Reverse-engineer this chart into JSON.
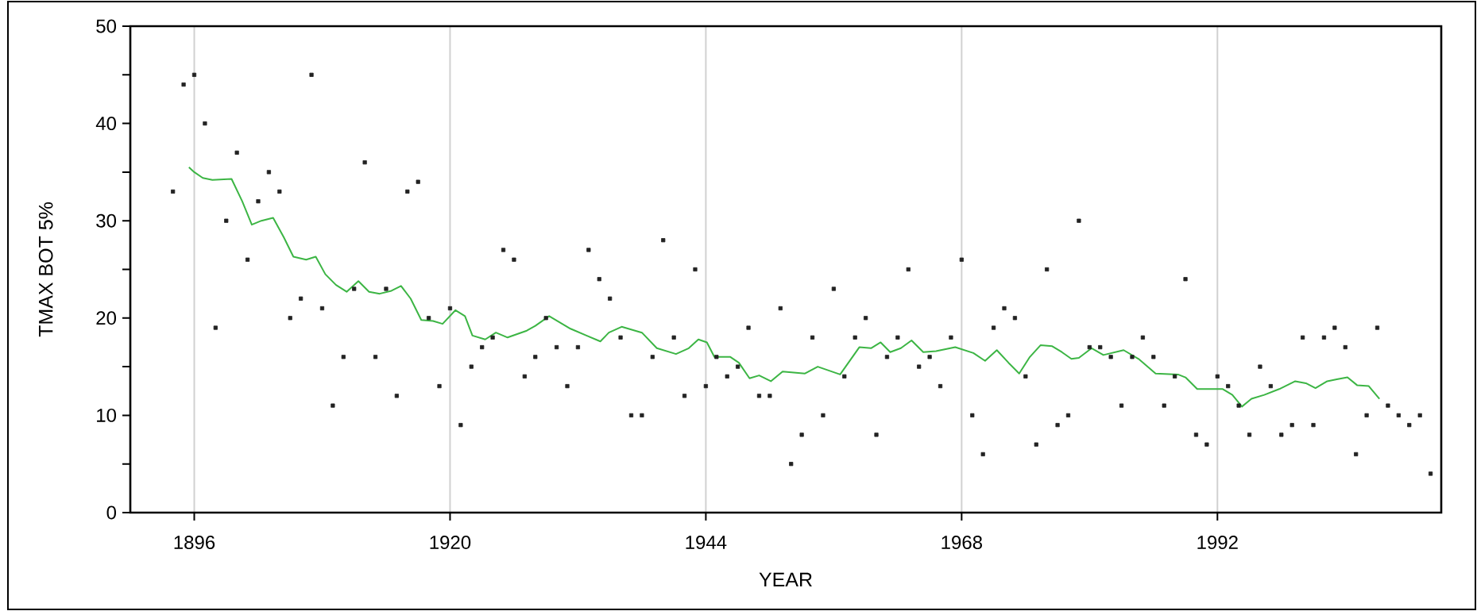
{
  "chart_data": {
    "type": "scatter",
    "xlabel": "YEAR",
    "ylabel": "TMAX BOT 5%",
    "xlim": [
      1890,
      2013
    ],
    "ylim": [
      0,
      50
    ],
    "xticks": [
      1896,
      1920,
      1944,
      1968,
      1992
    ],
    "yticks": [
      0,
      {
        "value": 5,
        "label": null
      },
      10,
      {
        "value": 15,
        "label": null
      },
      20,
      {
        "value": 25,
        "label": null
      },
      30,
      {
        "value": 35,
        "label": null
      },
      40,
      {
        "value": 45,
        "label": null
      },
      50
    ],
    "grid": "x",
    "marker": "square",
    "series": [
      {
        "color": "#222222",
        "x": [
          1894,
          1895,
          1896,
          1897,
          1898,
          1899,
          1900,
          1901,
          1902,
          1903,
          1904,
          1905,
          1906,
          1907,
          1908,
          1909,
          1910,
          1911,
          1912,
          1913,
          1914,
          1915,
          1916,
          1917,
          1918,
          1919,
          1920,
          1921,
          1922,
          1923,
          1924,
          1925,
          1926,
          1927,
          1928,
          1929,
          1930,
          1931,
          1932,
          1933,
          1934,
          1935,
          1936,
          1937,
          1938,
          1939,
          1940,
          1941,
          1942,
          1943,
          1944,
          1945,
          1946,
          1947,
          1948,
          1949,
          1950,
          1951,
          1952,
          1953,
          1954,
          1955,
          1956,
          1957,
          1958,
          1959,
          1960,
          1961,
          1962,
          1963,
          1964,
          1965,
          1966,
          1967,
          1968,
          1969,
          1970,
          1971,
          1972,
          1973,
          1974,
          1975,
          1976,
          1977,
          1978,
          1979,
          1980,
          1981,
          1982,
          1983,
          1984,
          1985,
          1986,
          1987,
          1988,
          1989,
          1990,
          1991,
          1992,
          1993,
          1994,
          1995,
          1996,
          1997,
          1998,
          1999,
          2000,
          2001,
          2002,
          2003,
          2004,
          2005,
          2006,
          2007,
          2008,
          2009,
          2010,
          2011,
          2012
        ],
        "values": [
          33,
          44,
          45,
          40,
          19,
          30,
          37,
          26,
          32,
          35,
          33,
          20,
          22,
          45,
          21,
          11,
          16,
          23,
          36,
          16,
          23,
          12,
          33,
          34,
          20,
          13,
          21,
          9,
          15,
          17,
          18,
          27,
          26,
          14,
          16,
          20,
          17,
          13,
          17,
          27,
          24,
          22,
          18,
          10,
          10,
          16,
          28,
          18,
          12,
          25,
          13,
          16,
          14,
          15,
          19,
          12,
          12,
          21,
          5,
          8,
          18,
          10,
          23,
          14,
          18,
          20,
          8,
          16,
          18,
          25,
          15,
          16,
          13,
          18,
          26,
          10,
          6,
          19,
          21,
          20,
          14,
          7,
          25,
          9,
          10,
          30,
          17,
          17,
          16,
          11,
          16,
          18,
          16,
          11,
          14,
          24,
          8,
          7,
          14,
          13,
          11,
          8,
          15,
          13,
          8,
          9,
          18,
          9,
          18,
          19,
          17,
          6,
          10,
          19,
          11,
          10,
          9,
          10,
          4
        ]
      },
      {
        "type": "line",
        "color": "#3cb544",
        "marker": "none",
        "x": [
          1895.5,
          1896,
          1896.8,
          1897.7,
          1899.5,
          1900.5,
          1901.4,
          1902.3,
          1903.4,
          1904.4,
          1905.3,
          1906.5,
          1907.4,
          1908.3,
          1909.3,
          1910.3,
          1911.4,
          1912.4,
          1913.4,
          1914.5,
          1915.4,
          1916.3,
          1917.3,
          1918.4,
          1919.3,
          1920.5,
          1921.4,
          1922.1,
          1923.3,
          1924.3,
          1925.4,
          1927.2,
          1928.0,
          1929.3,
          1931.3,
          1932.8,
          1934.1,
          1934.9,
          1936.1,
          1938.0,
          1939.4,
          1941.2,
          1942.4,
          1943.3,
          1944.1,
          1944.8,
          1946.3,
          1947.1,
          1948.1,
          1949.0,
          1950.1,
          1951.2,
          1953.3,
          1954.5,
          1956.6,
          1958.4,
          1959.5,
          1960.4,
          1961.3,
          1962.3,
          1963.3,
          1964.4,
          1965.6,
          1967.4,
          1969.1,
          1970.2,
          1971.3,
          1972.4,
          1973.4,
          1974.4,
          1975.4,
          1976.5,
          1977.4,
          1978.3,
          1979.0,
          1980.2,
          1981.3,
          1983.2,
          1984.6,
          1986.2,
          1988.3,
          1989.0,
          1990.1,
          1991.3,
          1992.5,
          1993.4,
          1994.3,
          1995.2,
          1996.4,
          1997.8,
          1999.3,
          2000.3,
          2001.2,
          2002.3,
          2003.2,
          2004.2,
          2005.1,
          2006.2,
          2007.2
        ],
        "values": [
          35.5,
          35.0,
          34.4,
          34.2,
          34.3,
          32.0,
          29.6,
          30.0,
          30.3,
          28.3,
          26.3,
          26.0,
          26.3,
          24.5,
          23.4,
          22.7,
          23.8,
          22.7,
          22.5,
          22.8,
          23.3,
          22.0,
          19.8,
          19.7,
          19.4,
          20.8,
          20.2,
          18.2,
          17.8,
          18.5,
          18.0,
          18.7,
          19.2,
          20.2,
          18.9,
          18.2,
          17.6,
          18.5,
          19.1,
          18.5,
          16.9,
          16.3,
          16.9,
          17.8,
          17.5,
          16.0,
          16.0,
          15.4,
          13.8,
          14.1,
          13.5,
          14.5,
          14.3,
          15.0,
          14.2,
          17.0,
          16.9,
          17.5,
          16.5,
          16.9,
          17.7,
          16.5,
          16.6,
          17.0,
          16.4,
          15.6,
          16.7,
          15.4,
          14.3,
          16.0,
          17.2,
          17.1,
          16.5,
          15.8,
          15.9,
          16.9,
          16.2,
          16.7,
          15.8,
          14.3,
          14.2,
          13.9,
          12.7,
          12.7,
          12.7,
          12.1,
          10.9,
          11.7,
          12.1,
          12.7,
          13.5,
          13.3,
          12.8,
          13.5,
          13.7,
          13.9,
          13.1,
          13.0,
          11.7
        ]
      }
    ]
  }
}
